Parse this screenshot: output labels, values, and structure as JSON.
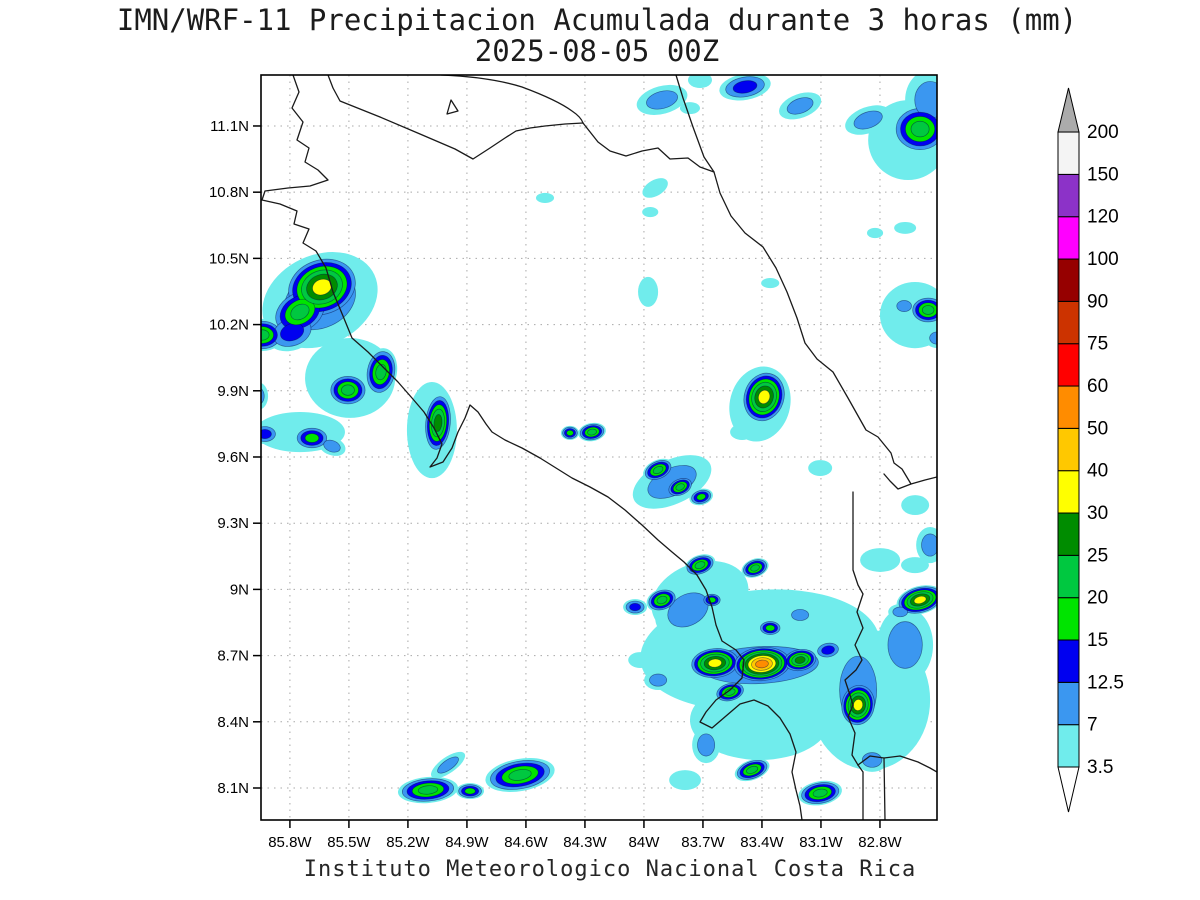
{
  "title": {
    "line1": "IMN/WRF-11 Precipitacion Acumulada durante 3 horas (mm)",
    "line2": "2025-08-05 00Z"
  },
  "footer": "Instituto Meteorologico Nacional Costa Rica",
  "axes": {
    "lat_ticks": [
      {
        "label": "11.1N",
        "deg": 11.1
      },
      {
        "label": "10.8N",
        "deg": 10.8
      },
      {
        "label": "10.5N",
        "deg": 10.5
      },
      {
        "label": "10.2N",
        "deg": 10.2
      },
      {
        "label": "9.9N",
        "deg": 9.9
      },
      {
        "label": "9.6N",
        "deg": 9.6
      },
      {
        "label": "9.3N",
        "deg": 9.3
      },
      {
        "label": "9N",
        "deg": 9.0
      },
      {
        "label": "8.7N",
        "deg": 8.7
      },
      {
        "label": "8.4N",
        "deg": 8.4
      },
      {
        "label": "8.1N",
        "deg": 8.1
      }
    ],
    "lon_ticks": [
      {
        "label": "85.8W",
        "deg": -85.8
      },
      {
        "label": "85.5W",
        "deg": -85.5
      },
      {
        "label": "85.2W",
        "deg": -85.2
      },
      {
        "label": "84.9W",
        "deg": -84.9
      },
      {
        "label": "84.6W",
        "deg": -84.6
      },
      {
        "label": "84.3W",
        "deg": -84.3
      },
      {
        "label": "84W",
        "deg": -84.0
      },
      {
        "label": "83.7W",
        "deg": -83.7
      },
      {
        "label": "83.4W",
        "deg": -83.4
      },
      {
        "label": "83.1W",
        "deg": -83.1
      },
      {
        "label": "82.8W",
        "deg": -82.8
      }
    ]
  },
  "colorbar": {
    "tick_labels_bottom_up": [
      "3.5",
      "7",
      "12.5",
      "15",
      "20",
      "25",
      "30",
      "40",
      "50",
      "60",
      "75",
      "90",
      "100",
      "120",
      "150",
      "200"
    ],
    "over_arrow_color": "#ABABAB",
    "under_arrow_color": "#FFFFFF",
    "outline_color": "#000000"
  },
  "chart_data": {
    "type": "filled_contour_map",
    "title": "IMN/WRF-11 Precipitacion Acumulada durante 3 horas (mm)",
    "valid_time": "2025-08-05 00Z",
    "units": "mm",
    "source": "Instituto Meteorologico Nacional Costa Rica",
    "lon_range": [
      -85.947,
      -82.51
    ],
    "lat_range": [
      7.955,
      11.331
    ],
    "levels_mm": [
      3.5,
      7,
      12.5,
      15,
      20,
      25,
      30,
      40,
      50,
      60,
      75,
      90,
      100,
      120,
      150,
      200
    ],
    "palette": [
      "#70ECEC",
      "#3B97F0",
      "#0000F0",
      "#00E400",
      "#00C840",
      "#008C00",
      "#FFFF00",
      "#FFC800",
      "#FF8C00",
      "#FF0000",
      "#CC3300",
      "#960000",
      "#FF00FF",
      "#8C32C8",
      "#F4F4F4"
    ],
    "grid_on": true,
    "legend_position": "right",
    "cell_format": [
      "lon_deg",
      "lat_deg",
      "rx_deg",
      "ry_deg",
      "rotation_deg",
      "max_level_index"
    ],
    "cells": [
      [
        -85.647,
        10.311,
        0.305,
        0.204,
        -25,
        1
      ],
      [
        -85.637,
        10.37,
        0.193,
        0.136,
        -20,
        6
      ],
      [
        -85.749,
        10.257,
        0.153,
        0.1,
        -30,
        4
      ],
      [
        -85.942,
        10.153,
        0.112,
        0.073,
        0,
        4
      ],
      [
        -85.789,
        10.166,
        0.132,
        0.082,
        -20,
        2
      ],
      [
        -85.494,
        9.958,
        0.229,
        0.181,
        0,
        0
      ],
      [
        -85.505,
        9.903,
        0.102,
        0.073,
        0,
        4
      ],
      [
        -85.337,
        9.985,
        0.081,
        0.109,
        10,
        4
      ],
      [
        -85.078,
        9.722,
        0.127,
        0.218,
        0,
        0
      ],
      [
        -85.047,
        9.754,
        0.071,
        0.136,
        5,
        5
      ],
      [
        -85.688,
        9.686,
        0.092,
        0.054,
        0,
        3
      ],
      [
        -85.927,
        9.704,
        0.071,
        0.045,
        0,
        2
      ],
      [
        -85.586,
        9.649,
        0.071,
        0.041,
        20,
        1
      ],
      [
        -85.749,
        9.713,
        0.229,
        0.091,
        0,
        0
      ],
      [
        -85.962,
        9.876,
        0.051,
        0.063,
        0,
        1
      ],
      [
        -83.908,
        11.218,
        0.132,
        0.063,
        -15,
        1
      ],
      [
        -83.486,
        11.277,
        0.132,
        0.059,
        -10,
        2
      ],
      [
        -83.206,
        11.191,
        0.112,
        0.054,
        -20,
        1
      ],
      [
        -82.86,
        11.127,
        0.122,
        0.059,
        -20,
        1
      ],
      [
        -82.657,
        11.036,
        0.203,
        0.181,
        0,
        0
      ],
      [
        -82.596,
        11.086,
        0.142,
        0.109,
        0,
        4
      ],
      [
        -82.545,
        11.218,
        0.127,
        0.136,
        0,
        1
      ],
      [
        -83.715,
        11.308,
        0.061,
        0.036,
        0,
        0
      ],
      [
        -83.766,
        11.181,
        0.051,
        0.027,
        0,
        0
      ],
      [
        -84.503,
        10.774,
        0.046,
        0.023,
        0,
        0
      ],
      [
        -83.943,
        10.819,
        0.071,
        0.036,
        -30,
        0
      ],
      [
        -83.968,
        10.71,
        0.041,
        0.023,
        0,
        0
      ],
      [
        -83.979,
        10.348,
        0.051,
        0.068,
        0,
        0
      ],
      [
        -83.358,
        10.388,
        0.046,
        0.023,
        0,
        0
      ],
      [
        -82.672,
        10.638,
        0.056,
        0.027,
        0,
        0
      ],
      [
        -82.825,
        10.615,
        0.041,
        0.023,
        0,
        0
      ],
      [
        -84.264,
        9.713,
        0.071,
        0.041,
        -10,
        4
      ],
      [
        -84.376,
        9.709,
        0.046,
        0.032,
        0,
        3
      ],
      [
        -83.857,
        9.487,
        0.214,
        0.1,
        -25,
        1
      ],
      [
        -83.928,
        9.541,
        0.081,
        0.045,
        -25,
        4
      ],
      [
        -83.816,
        9.464,
        0.071,
        0.041,
        -25,
        4
      ],
      [
        -83.709,
        9.419,
        0.061,
        0.036,
        -15,
        3
      ],
      [
        -83.41,
        9.84,
        0.153,
        0.172,
        15,
        0
      ],
      [
        -83.389,
        9.872,
        0.112,
        0.122,
        18,
        6
      ],
      [
        -83.501,
        9.713,
        0.061,
        0.036,
        0,
        0
      ],
      [
        -82.622,
        10.243,
        0.178,
        0.15,
        0,
        0
      ],
      [
        -82.555,
        10.266,
        0.092,
        0.063,
        0,
        4
      ],
      [
        -82.677,
        10.284,
        0.061,
        0.041,
        0,
        1
      ],
      [
        -82.51,
        10.139,
        0.061,
        0.045,
        0,
        1
      ],
      [
        -82.545,
        9.201,
        0.071,
        0.082,
        0,
        1
      ],
      [
        -82.621,
        9.382,
        0.071,
        0.045,
        0,
        0
      ],
      [
        -83.104,
        9.55,
        0.061,
        0.036,
        0,
        0
      ],
      [
        -83.41,
        8.725,
        0.61,
        0.272,
        -5,
        0
      ],
      [
        -83.715,
        8.961,
        0.254,
        0.159,
        -20,
        0
      ],
      [
        -82.85,
        8.499,
        0.305,
        0.317,
        0,
        0
      ],
      [
        -83.41,
        8.408,
        0.356,
        0.181,
        0,
        0
      ],
      [
        -83.41,
        8.657,
        0.483,
        0.136,
        -3,
        1
      ],
      [
        -83.776,
        8.907,
        0.178,
        0.113,
        -30,
        1
      ],
      [
        -82.911,
        8.544,
        0.153,
        0.249,
        0,
        1
      ],
      [
        -82.672,
        8.748,
        0.142,
        0.172,
        0,
        1
      ],
      [
        -83.715,
        9.11,
        0.081,
        0.045,
        -20,
        4
      ],
      [
        -83.435,
        9.097,
        0.071,
        0.041,
        -20,
        4
      ],
      [
        -83.908,
        8.952,
        0.081,
        0.05,
        -20,
        4
      ],
      [
        -84.045,
        8.92,
        0.061,
        0.036,
        0,
        2
      ],
      [
        -83.639,
        8.666,
        0.132,
        0.073,
        -5,
        6
      ],
      [
        -83.4,
        8.662,
        0.153,
        0.082,
        -5,
        8
      ],
      [
        -83.206,
        8.68,
        0.092,
        0.054,
        -10,
        5
      ],
      [
        -83.064,
        8.725,
        0.071,
        0.041,
        -10,
        2
      ],
      [
        -82.911,
        8.476,
        0.092,
        0.1,
        10,
        6
      ],
      [
        -82.596,
        8.952,
        0.122,
        0.063,
        -15,
        6
      ],
      [
        -83.562,
        8.535,
        0.081,
        0.045,
        -15,
        4
      ],
      [
        -83.684,
        8.295,
        0.071,
        0.082,
        0,
        1
      ],
      [
        -83.45,
        8.182,
        0.092,
        0.045,
        -20,
        4
      ],
      [
        -83.104,
        8.077,
        0.112,
        0.054,
        -10,
        4
      ],
      [
        -82.84,
        8.227,
        0.081,
        0.054,
        0,
        1
      ],
      [
        -83.928,
        8.589,
        0.071,
        0.045,
        0,
        1
      ],
      [
        -84.019,
        8.68,
        0.061,
        0.036,
        0,
        0
      ],
      [
        -83.654,
        8.952,
        0.051,
        0.032,
        0,
        3
      ],
      [
        -82.697,
        8.898,
        0.061,
        0.036,
        0,
        1
      ],
      [
        -82.799,
        9.133,
        0.102,
        0.054,
        0,
        0
      ],
      [
        -82.622,
        9.11,
        0.071,
        0.036,
        0,
        0
      ],
      [
        -83.358,
        8.825,
        0.061,
        0.036,
        0,
        3
      ],
      [
        -83.206,
        8.884,
        0.071,
        0.041,
        0,
        1
      ],
      [
        -83.791,
        8.136,
        0.081,
        0.045,
        0,
        0
      ],
      [
        -85.098,
        8.091,
        0.153,
        0.059,
        -5,
        4
      ],
      [
        -84.996,
        8.204,
        0.102,
        0.036,
        -35,
        1
      ],
      [
        -84.63,
        8.159,
        0.178,
        0.073,
        -10,
        4
      ],
      [
        -84.884,
        8.086,
        0.071,
        0.036,
        0,
        3
      ]
    ]
  }
}
